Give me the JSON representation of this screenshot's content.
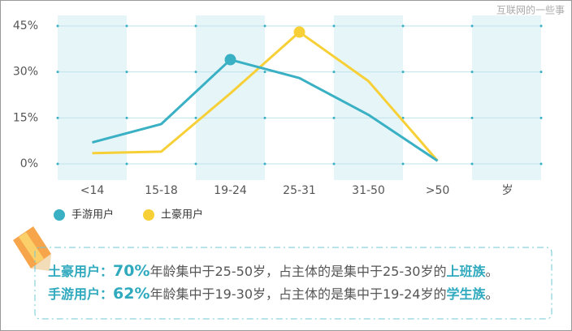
{
  "watermark": "互联网的一些事",
  "chart_data": {
    "type": "line",
    "categories": [
      "<14",
      "15-18",
      "19-24",
      "25-31",
      "31-50",
      ">50"
    ],
    "x_unit": "岁",
    "series": [
      {
        "name": "手游用户",
        "color": "#3ab0c4",
        "values": [
          7,
          13,
          34,
          28,
          16,
          1
        ],
        "marker_index": 2
      },
      {
        "name": "土豪用户",
        "color": "#f7d038",
        "values": [
          3.5,
          4,
          23,
          43,
          27,
          1
        ],
        "marker_index": 3
      }
    ],
    "ylim": [
      0,
      45
    ],
    "yticks": [
      {
        "value": 0,
        "label": "0%"
      },
      {
        "value": 15,
        "label": "15%"
      },
      {
        "value": 30,
        "label": "30%"
      },
      {
        "value": 45,
        "label": "45%"
      }
    ],
    "grid": true
  },
  "notes": [
    [
      {
        "text": "土豪用户：",
        "em": true
      },
      {
        "text": "70%",
        "em": true,
        "big": true
      },
      {
        "text": "年龄集中于25-50岁，占主体的是集中于25-30岁的",
        "em": false
      },
      {
        "text": "上班族",
        "em": true
      },
      {
        "text": "。",
        "em": false
      }
    ],
    [
      {
        "text": "手游用户：",
        "em": true
      },
      {
        "text": "62%",
        "em": true,
        "big": true
      },
      {
        "text": "年龄集中于19-30岁，占主体的是集中于19-24岁的",
        "em": false
      },
      {
        "text": "学生族",
        "em": true
      },
      {
        "text": "。",
        "em": false
      }
    ]
  ]
}
